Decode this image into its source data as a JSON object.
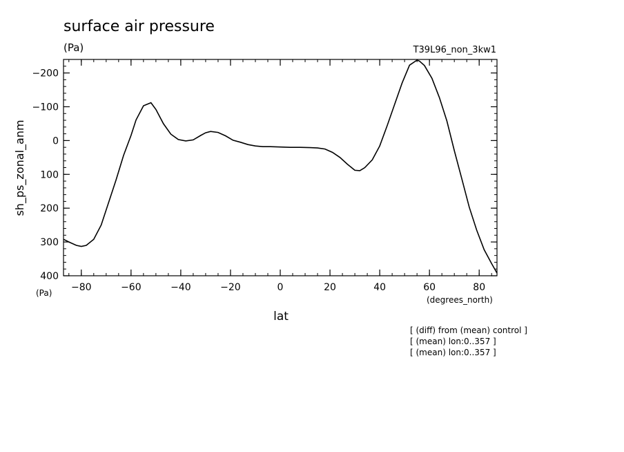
{
  "chart_data": {
    "type": "line",
    "title": "surface air pressure",
    "units_top": "(Pa)",
    "run_label": "T39L96_non_3kw1",
    "ylabel": "sh_ps_zonal_anm",
    "y_units_bottom": "(Pa)",
    "xlabel": "lat",
    "x_units": "(degrees_north)",
    "xlim": [
      -87.16,
      87.16
    ],
    "ylim": [
      400,
      -240
    ],
    "y_inverted": true,
    "x_ticks": [
      "-80",
      "-60",
      "-40",
      "-20",
      "0",
      "20",
      "40",
      "60",
      "80"
    ],
    "y_ticks": [
      "-200",
      "-100",
      "0",
      "100",
      "200",
      "300",
      "400"
    ],
    "notes": [
      "[ (diff) from (mean) control ]",
      "[ (mean) lon:0..357 ]",
      "[ (mean) lon:0..357 ]"
    ],
    "grid": false,
    "series": [
      {
        "x": [
          -87.16,
          -85,
          -82,
          -80,
          -78,
          -75,
          -72,
          -69,
          -66,
          -63,
          -60,
          -58,
          -55,
          -52,
          -50,
          -47,
          -44,
          -41,
          -38,
          -35,
          -32,
          -30,
          -28,
          -25,
          -22,
          -19,
          -16,
          -13,
          -10,
          -7,
          -4,
          0,
          4,
          8,
          12,
          15,
          18,
          21,
          24,
          27,
          30,
          32,
          34,
          37,
          40,
          43,
          46,
          49,
          52,
          55,
          56,
          58,
          61,
          64,
          67,
          70,
          73,
          76,
          79,
          82,
          85,
          87.16
        ],
        "y": [
          292,
          300,
          310,
          313,
          310,
          292,
          250,
          183,
          116,
          44,
          -15,
          -61,
          -103,
          -112,
          -92,
          -50,
          -19,
          -3,
          1,
          -2,
          -15,
          -23,
          -27,
          -24,
          -14,
          -1,
          5,
          12,
          16,
          18,
          18,
          19,
          20,
          20,
          21,
          22,
          25,
          35,
          50,
          70,
          88,
          89,
          80,
          57,
          16,
          -44,
          -107,
          -170,
          -223,
          -238,
          -235,
          -222,
          -184,
          -127,
          -58,
          30,
          113,
          197,
          265,
          323,
          364,
          392
        ]
      }
    ]
  }
}
